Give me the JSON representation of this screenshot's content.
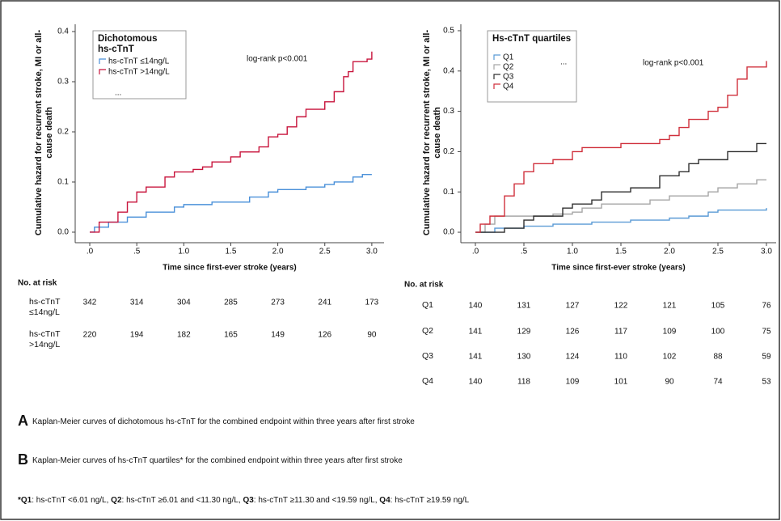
{
  "chart_data": [
    {
      "type": "line",
      "step": true,
      "y_label": "Cumulative hazard for recurrent stroke, MI or all-cause death",
      "x_label": "Time since first-ever stroke (years)",
      "annotation": "log-rank p<0.001",
      "legend_title": "Dichotomous hs-cTnT",
      "censored_label": "...",
      "xlim": [
        -0.155,
        3.13
      ],
      "ylim": [
        -0.021,
        0.4145
      ],
      "xticks": [
        {
          "value": 0,
          "label": ".0"
        },
        {
          "value": 0.5,
          "label": ".5"
        },
        {
          "value": 1,
          "label": "1.0"
        },
        {
          "value": 1.5,
          "label": "1.5"
        },
        {
          "value": 2,
          "label": "2.0"
        },
        {
          "value": 2.5,
          "label": "2.5"
        },
        {
          "value": 3,
          "label": "3.0"
        }
      ],
      "yticks": [
        {
          "value": 0,
          "label": "0.0"
        },
        0.1,
        0.2,
        0.3,
        0.4
      ],
      "series": [
        {
          "name": "hs-cTnT ≤14ng/L",
          "color": "#4a90d9",
          "x": [
            0,
            0.05,
            0.2,
            0.4,
            0.6,
            0.9,
            1.0,
            1.3,
            1.7,
            1.9,
            2.0,
            2.3,
            2.5,
            2.6,
            2.8,
            2.9,
            3.0
          ],
          "values": [
            0,
            0.01,
            0.02,
            0.03,
            0.04,
            0.05,
            0.055,
            0.06,
            0.07,
            0.08,
            0.085,
            0.09,
            0.095,
            0.1,
            0.11,
            0.115,
            0.115
          ]
        },
        {
          "name": "hs-cTnT >14ng/L",
          "color": "#c8143c",
          "x": [
            0,
            0.1,
            0.3,
            0.4,
            0.5,
            0.6,
            0.8,
            0.9,
            1.1,
            1.2,
            1.3,
            1.5,
            1.6,
            1.8,
            1.9,
            2.0,
            2.1,
            2.2,
            2.3,
            2.5,
            2.6,
            2.7,
            2.75,
            2.8,
            2.95,
            3.0
          ],
          "values": [
            0,
            0.02,
            0.04,
            0.06,
            0.08,
            0.09,
            0.11,
            0.12,
            0.125,
            0.13,
            0.14,
            0.15,
            0.16,
            0.17,
            0.19,
            0.195,
            0.21,
            0.23,
            0.245,
            0.26,
            0.28,
            0.31,
            0.32,
            0.34,
            0.345,
            0.36
          ]
        }
      ]
    },
    {
      "type": "line",
      "step": true,
      "y_label": "Cumulative hazard for recurrent stroke, MI or all-cause death",
      "x_label": "Time since first-ever stroke (years)",
      "annotation": "log-rank p<0.001",
      "legend_title": "Hs-cTnT quartiles",
      "censored_label": "...",
      "xlim": [
        -0.15,
        3.1
      ],
      "ylim": [
        -0.026,
        0.516
      ],
      "xticks": [
        {
          "value": 0,
          "label": ".0"
        },
        {
          "value": 0.5,
          "label": ".5"
        },
        {
          "value": 1,
          "label": "1.0"
        },
        {
          "value": 1.5,
          "label": "1.5"
        },
        {
          "value": 2,
          "label": "2.0"
        },
        {
          "value": 2.5,
          "label": "2.5"
        },
        {
          "value": 3,
          "label": "3.0"
        }
      ],
      "yticks": [
        {
          "value": 0,
          "label": "0.0"
        },
        0.1,
        0.2,
        0.3,
        0.4,
        0.5
      ],
      "series": [
        {
          "name": "Q1",
          "color": "#5b9bd5",
          "x": [
            0,
            0.2,
            0.5,
            0.8,
            1.2,
            1.6,
            2.0,
            2.2,
            2.4,
            2.5,
            3.0
          ],
          "values": [
            0,
            0.01,
            0.015,
            0.02,
            0.025,
            0.03,
            0.035,
            0.04,
            0.05,
            0.055,
            0.06
          ]
        },
        {
          "name": "Q2",
          "color": "#a6a6a6",
          "x": [
            0,
            0.1,
            0.2,
            0.8,
            1.0,
            1.1,
            1.3,
            1.8,
            2.0,
            2.4,
            2.5,
            2.7,
            2.9,
            3.0
          ],
          "values": [
            0,
            0.02,
            0.04,
            0.045,
            0.05,
            0.06,
            0.07,
            0.08,
            0.09,
            0.1,
            0.11,
            0.12,
            0.13,
            0.13
          ]
        },
        {
          "name": "Q3",
          "color": "#303030",
          "x": [
            0,
            0.3,
            0.5,
            0.6,
            0.9,
            1.0,
            1.2,
            1.3,
            1.6,
            1.9,
            2.1,
            2.2,
            2.3,
            2.6,
            2.9,
            3.0
          ],
          "values": [
            0,
            0.01,
            0.03,
            0.04,
            0.06,
            0.07,
            0.08,
            0.1,
            0.11,
            0.14,
            0.15,
            0.17,
            0.18,
            0.2,
            0.22,
            0.22
          ]
        },
        {
          "name": "Q4",
          "color": "#d0303c",
          "x": [
            0,
            0.05,
            0.15,
            0.3,
            0.4,
            0.5,
            0.6,
            0.8,
            1.0,
            1.1,
            1.5,
            1.9,
            2.0,
            2.1,
            2.2,
            2.4,
            2.5,
            2.6,
            2.7,
            2.8,
            2.95,
            3.0
          ],
          "values": [
            0,
            0.02,
            0.04,
            0.09,
            0.12,
            0.15,
            0.17,
            0.18,
            0.2,
            0.21,
            0.22,
            0.23,
            0.24,
            0.26,
            0.28,
            0.3,
            0.31,
            0.34,
            0.38,
            0.41,
            0.41,
            0.425
          ]
        }
      ]
    }
  ],
  "risk_tables": [
    {
      "title": "No. at risk",
      "rows": [
        {
          "label": "hs-cTnT ≤14ng/L",
          "values": [
            342,
            314,
            304,
            285,
            273,
            241,
            173
          ]
        },
        {
          "label": "hs-cTnT >14ng/L",
          "values": [
            220,
            194,
            182,
            165,
            149,
            126,
            90
          ]
        }
      ]
    },
    {
      "title": "No. at risk",
      "rows": [
        {
          "label": "Q1",
          "values": [
            140,
            131,
            127,
            122,
            121,
            105,
            76
          ]
        },
        {
          "label": "Q2",
          "values": [
            141,
            129,
            126,
            117,
            109,
            100,
            75
          ]
        },
        {
          "label": "Q3",
          "values": [
            141,
            130,
            124,
            110,
            102,
            88,
            59
          ]
        },
        {
          "label": "Q4",
          "values": [
            140,
            118,
            109,
            101,
            90,
            74,
            53
          ]
        }
      ]
    }
  ],
  "captions": [
    {
      "letter": "A",
      "text": "Kaplan-Meier curves of dichotomous hs-cTnT for the combined endpoint within three years after first stroke"
    },
    {
      "letter": "B",
      "text": "Kaplan-Meier curves of hs-cTnT quartiles* for the combined endpoint within three years after first stroke"
    }
  ],
  "footnote": [
    "*Q1",
    ": hs-cTnT <6.01 ng/L, ",
    "Q2",
    ": hs-cTnT ≥6.01 and <11.30 ng/L, ",
    "Q3",
    ": hs-cTnT ≥11.30 and <19.59 ng/L, ",
    "Q4",
    ": hs-cTnT ≥19.59 ng/L"
  ]
}
